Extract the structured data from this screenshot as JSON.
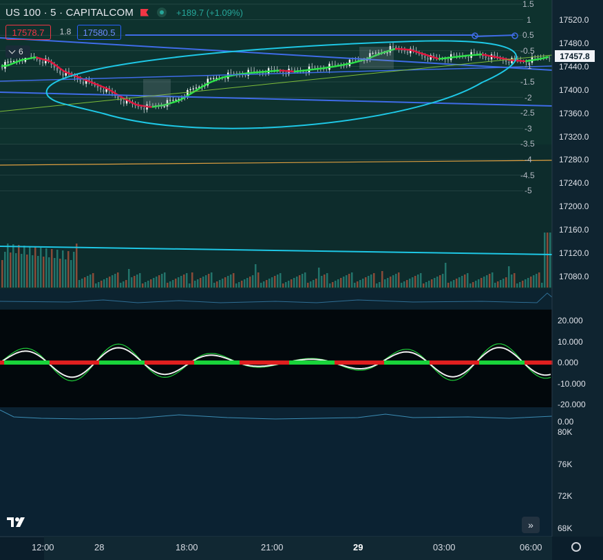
{
  "header": {
    "symbol": "US 100 · 5 · CAPITALCOM",
    "change": "+189.7 (+1.09%)",
    "sell_price": "17578.7",
    "spread": "1.8",
    "buy_price": "17580.5",
    "collapse_label": "6"
  },
  "colors": {
    "up": "#26a69a",
    "down": "#ef5350",
    "accent": "#2962ff",
    "cyan": "#1ec8e6",
    "bg": "#0b1e2b"
  },
  "price_axis": {
    "labels": [
      "17520.0",
      "17480.0",
      "17440.0",
      "17400.0",
      "17360.0",
      "17320.0",
      "17280.0",
      "17240.0",
      "17200.0",
      "17160.0",
      "17120.0",
      "17080.0"
    ],
    "current_price": "17457.8"
  },
  "fib_levels": [
    "1.5",
    "1",
    "0.5",
    "-0.5",
    "-1",
    "-1.5",
    "-2",
    "-2.5",
    "-3",
    "-3.5",
    "-4",
    "-4.5",
    "-5"
  ],
  "oscillator_axis": [
    "20.000",
    "10.000",
    "0.000",
    "-10.000",
    "-20.000"
  ],
  "lower_pane": {
    "zero_label": "0.00",
    "labels": [
      "80K",
      "76K",
      "72K",
      "68K"
    ]
  },
  "time_axis": [
    {
      "label": "12:00",
      "bold": false
    },
    {
      "label": "28",
      "bold": false
    },
    {
      "label": "18:00",
      "bold": false
    },
    {
      "label": "21:00",
      "bold": false
    },
    {
      "label": "29",
      "bold": true
    },
    {
      "label": "03:00",
      "bold": false
    },
    {
      "label": "06:00",
      "bold": false
    }
  ],
  "chart_data": {
    "type": "line",
    "title": "",
    "series": [
      {
        "values": [
          17440,
          17450,
          17455,
          17448,
          17430,
          17420,
          17410,
          17400,
          17385,
          17372,
          17368,
          17372,
          17380,
          17395,
          17410,
          17420,
          17425,
          17428,
          17430,
          17432,
          17430,
          17433,
          17436,
          17440,
          17445,
          17452,
          17462,
          17470,
          17468,
          17460,
          17452,
          17455,
          17458,
          17460,
          17455,
          17450,
          17448,
          17452,
          17457.8
        ]
      }
    ],
    "ylim": [
      17060,
      17540
    ]
  }
}
